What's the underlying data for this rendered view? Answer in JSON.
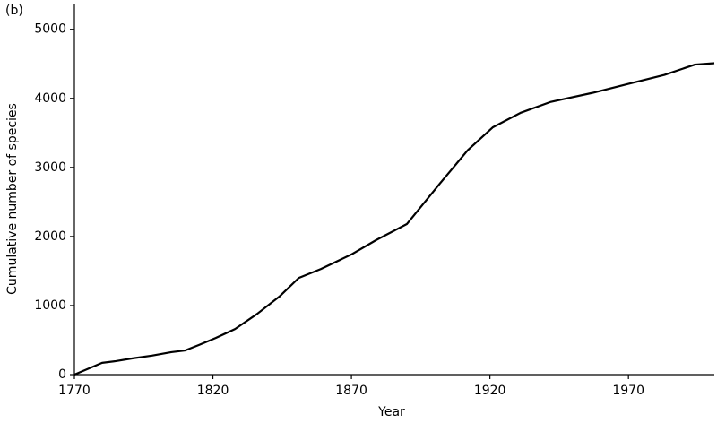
{
  "chart_data": {
    "type": "line",
    "annotation": "(b)",
    "x_label": "Year",
    "y_label": "Cumulative number of species",
    "x": [
      1770,
      1780,
      1785,
      1791,
      1798,
      1805,
      1810,
      1815,
      1821,
      1828,
      1836,
      1844,
      1851,
      1859,
      1870,
      1879,
      1890,
      1902,
      1912,
      1921,
      1931,
      1942,
      1957,
      1970,
      1983,
      1994,
      2001
    ],
    "series": [
      {
        "color": "#000000",
        "values": [
          0,
          170,
          195,
          235,
          275,
          325,
          350,
          430,
          530,
          660,
          880,
          1130,
          1400,
          1530,
          1740,
          1950,
          2180,
          2770,
          3250,
          3580,
          3790,
          3950,
          4080,
          4210,
          4340,
          4490,
          4510
        ]
      }
    ],
    "xlim": [
      1770,
      2001
    ],
    "xticks": [
      1770,
      1820,
      1870,
      1920,
      1970
    ],
    "ylim": [
      0,
      5360
    ],
    "yticks": [
      0,
      1000,
      2000,
      3000,
      4000,
      5000
    ]
  }
}
